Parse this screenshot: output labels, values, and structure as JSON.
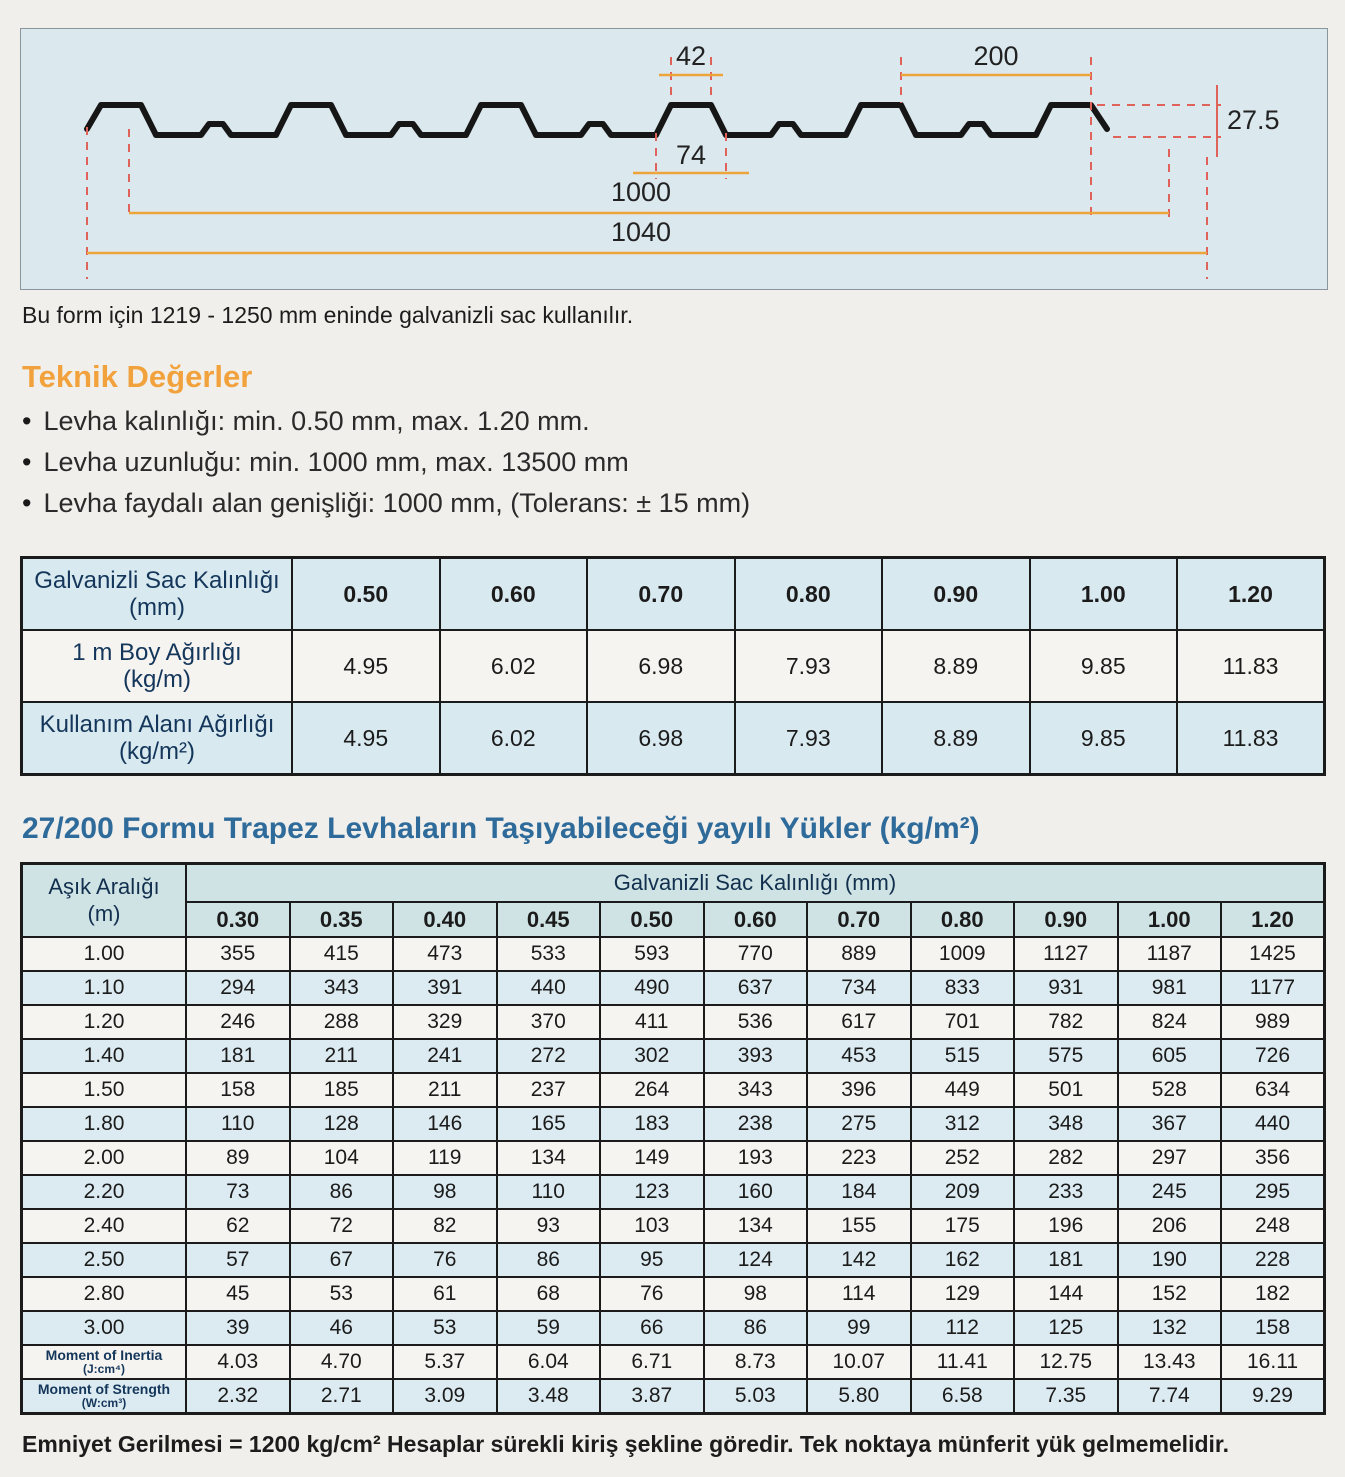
{
  "diagram": {
    "dims": {
      "top_width": "42",
      "pitch": "200",
      "bottom_width": "74",
      "height": "27.5",
      "useful_width": "1000",
      "total_width": "1040"
    }
  },
  "caption": "Bu form için 1219 - 1250 mm eninde galvanizli sac kullanılır.",
  "teknik": {
    "title": "Teknik Değerler",
    "bullets": [
      "Levha kalınlığı: min. 0.50 mm, max. 1.20 mm.",
      "Levha uzunluğu: min. 1000 mm, max. 13500 mm",
      "Levha faydalı alan genişliği: 1000 mm, (Tolerans: ± 15 mm)"
    ]
  },
  "weight_table": {
    "rows": [
      {
        "label": "Galvanizli Sac Kalınlığı",
        "unit": "(mm)",
        "header": true,
        "values": [
          "0.50",
          "0.60",
          "0.70",
          "0.80",
          "0.90",
          "1.00",
          "1.20"
        ]
      },
      {
        "label": "1 m Boy Ağırlığı",
        "unit": "(kg/m)",
        "header": false,
        "values": [
          "4.95",
          "6.02",
          "6.98",
          "7.93",
          "8.89",
          "9.85",
          "11.83"
        ]
      },
      {
        "label": "Kullanım Alanı Ağırlığı",
        "unit": "(kg/m²)",
        "header": false,
        "values": [
          "4.95",
          "6.02",
          "6.98",
          "7.93",
          "8.89",
          "9.85",
          "11.83"
        ]
      }
    ]
  },
  "load_section": {
    "title": "27/200 Formu Trapez Levhaların Taşıyabileceği yayılı Yükler (kg/m²)",
    "table": {
      "corner_label": "Aşık Aralığı",
      "corner_unit": "(m)",
      "span_header": "Galvanizli Sac Kalınlığı (mm)",
      "thicknesses": [
        "0.30",
        "0.35",
        "0.40",
        "0.45",
        "0.50",
        "0.60",
        "0.70",
        "0.80",
        "0.90",
        "1.00",
        "1.20"
      ],
      "rows": [
        {
          "label": "1.00",
          "values": [
            "355",
            "415",
            "473",
            "533",
            "593",
            "770",
            "889",
            "1009",
            "1127",
            "1187",
            "1425"
          ]
        },
        {
          "label": "1.10",
          "values": [
            "294",
            "343",
            "391",
            "440",
            "490",
            "637",
            "734",
            "833",
            "931",
            "981",
            "1177"
          ]
        },
        {
          "label": "1.20",
          "values": [
            "246",
            "288",
            "329",
            "370",
            "411",
            "536",
            "617",
            "701",
            "782",
            "824",
            "989"
          ]
        },
        {
          "label": "1.40",
          "values": [
            "181",
            "211",
            "241",
            "272",
            "302",
            "393",
            "453",
            "515",
            "575",
            "605",
            "726"
          ]
        },
        {
          "label": "1.50",
          "values": [
            "158",
            "185",
            "211",
            "237",
            "264",
            "343",
            "396",
            "449",
            "501",
            "528",
            "634"
          ]
        },
        {
          "label": "1.80",
          "values": [
            "110",
            "128",
            "146",
            "165",
            "183",
            "238",
            "275",
            "312",
            "348",
            "367",
            "440"
          ]
        },
        {
          "label": "2.00",
          "values": [
            "89",
            "104",
            "119",
            "134",
            "149",
            "193",
            "223",
            "252",
            "282",
            "297",
            "356"
          ]
        },
        {
          "label": "2.20",
          "values": [
            "73",
            "86",
            "98",
            "110",
            "123",
            "160",
            "184",
            "209",
            "233",
            "245",
            "295"
          ]
        },
        {
          "label": "2.40",
          "values": [
            "62",
            "72",
            "82",
            "93",
            "103",
            "134",
            "155",
            "175",
            "196",
            "206",
            "248"
          ]
        },
        {
          "label": "2.50",
          "values": [
            "57",
            "67",
            "76",
            "86",
            "95",
            "124",
            "142",
            "162",
            "181",
            "190",
            "228"
          ]
        },
        {
          "label": "2.80",
          "values": [
            "45",
            "53",
            "61",
            "68",
            "76",
            "98",
            "114",
            "129",
            "144",
            "152",
            "182"
          ]
        },
        {
          "label": "3.00",
          "values": [
            "39",
            "46",
            "53",
            "59",
            "66",
            "86",
            "99",
            "112",
            "125",
            "132",
            "158"
          ]
        },
        {
          "label": "Moment of Inertia",
          "sub": "(J:cm⁴)",
          "values": [
            "4.03",
            "4.70",
            "5.37",
            "6.04",
            "6.71",
            "8.73",
            "10.07",
            "11.41",
            "12.75",
            "13.43",
            "16.11"
          ]
        },
        {
          "label": "Moment of Strength",
          "sub": "(W:cm³)",
          "values": [
            "2.32",
            "2.71",
            "3.09",
            "3.48",
            "3.87",
            "5.03",
            "5.80",
            "6.58",
            "7.35",
            "7.74",
            "9.29"
          ]
        }
      ]
    }
  },
  "footer": "Emniyet Gerilmesi = 1200 kg/cm² Hesaplar sürekli kiriş şekline göredir. Tek noktaya münferit yük gelmemelidir."
}
